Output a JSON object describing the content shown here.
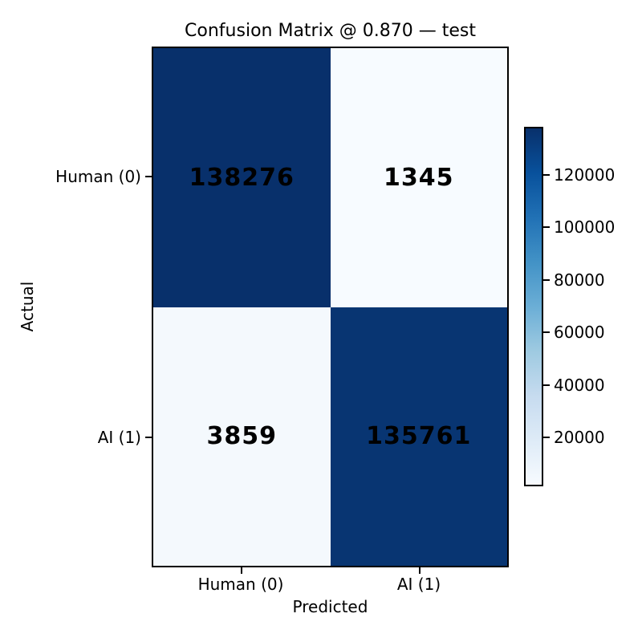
{
  "chart_data": {
    "type": "heatmap",
    "title": "Confusion Matrix @ 0.870 — test",
    "xlabel": "Predicted",
    "ylabel": "Actual",
    "x_categories": [
      "Human (0)",
      "AI (1)"
    ],
    "y_categories": [
      "Human (0)",
      "AI (1)"
    ],
    "matrix": [
      [
        138276,
        1345
      ],
      [
        3859,
        135761
      ]
    ],
    "cell_labels": [
      [
        "138276",
        "1345"
      ],
      [
        "3859",
        "135761"
      ]
    ],
    "vmin": 1345,
    "vmax": 138276,
    "colormap": "Blues",
    "legend_position": "right-colorbar",
    "grid": false,
    "colorbar": {
      "ticks": [
        120000,
        100000,
        80000,
        60000,
        40000,
        20000
      ],
      "tick_labels": [
        "120000",
        "100000",
        "80000",
        "60000",
        "40000",
        "20000"
      ]
    },
    "colors": {
      "cell_00": "#08306b",
      "cell_01": "#f7fbff",
      "cell_10": "#f4f9fd",
      "cell_11": "#083572",
      "value_text": "#000000",
      "axes_edge": "#000000",
      "colormap_stops": [
        "#f7fbff",
        "#deebf7",
        "#c6dbef",
        "#9ecae1",
        "#6baed6",
        "#4292c6",
        "#2171b5",
        "#08519c",
        "#08306b"
      ]
    }
  }
}
